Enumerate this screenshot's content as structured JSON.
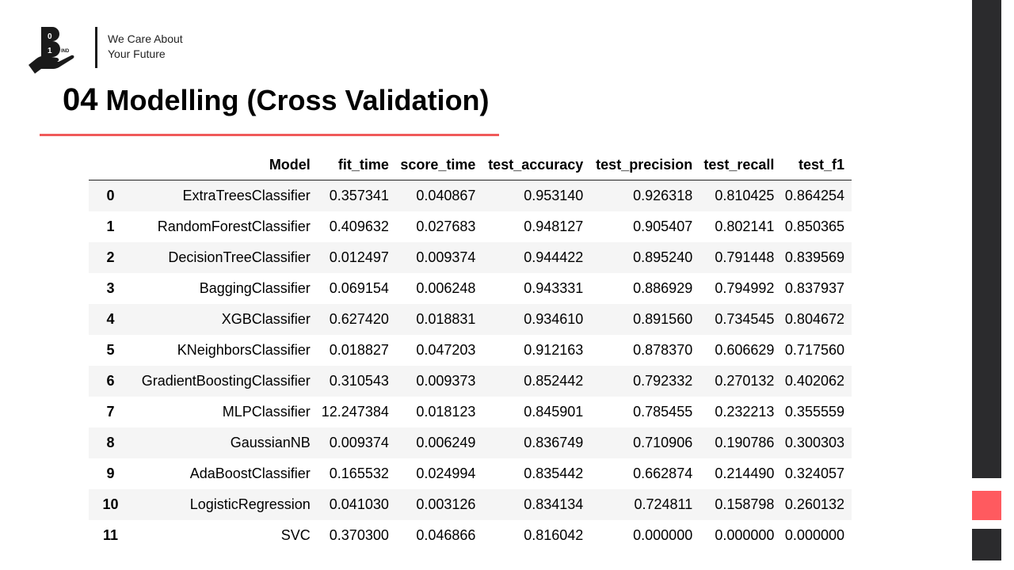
{
  "brand": {
    "tagline_line1": "We Care About",
    "tagline_line2": "Your Future",
    "logo_text_top": "0",
    "logo_text_mid": "1",
    "logo_text_small": "IND",
    "logo_letter": "B"
  },
  "slide": {
    "number": "04",
    "title": "Modelling (Cross Validation)"
  },
  "colors": {
    "accent": "#f05a5a",
    "sidebar_dark": "#2b2b2d",
    "sidebar_red": "#ff5a5f"
  },
  "table": {
    "headers": [
      "",
      "Model",
      "fit_time",
      "score_time",
      "test_accuracy",
      "test_precision",
      "test_recall",
      "test_f1"
    ],
    "rows": [
      [
        "0",
        "ExtraTreesClassifier",
        "0.357341",
        "0.040867",
        "0.953140",
        "0.926318",
        "0.810425",
        "0.864254"
      ],
      [
        "1",
        "RandomForestClassifier",
        "0.409632",
        "0.027683",
        "0.948127",
        "0.905407",
        "0.802141",
        "0.850365"
      ],
      [
        "2",
        "DecisionTreeClassifier",
        "0.012497",
        "0.009374",
        "0.944422",
        "0.895240",
        "0.791448",
        "0.839569"
      ],
      [
        "3",
        "BaggingClassifier",
        "0.069154",
        "0.006248",
        "0.943331",
        "0.886929",
        "0.794992",
        "0.837937"
      ],
      [
        "4",
        "XGBClassifier",
        "0.627420",
        "0.018831",
        "0.934610",
        "0.891560",
        "0.734545",
        "0.804672"
      ],
      [
        "5",
        "KNeighborsClassifier",
        "0.018827",
        "0.047203",
        "0.912163",
        "0.878370",
        "0.606629",
        "0.717560"
      ],
      [
        "6",
        "GradientBoostingClassifier",
        "0.310543",
        "0.009373",
        "0.852442",
        "0.792332",
        "0.270132",
        "0.402062"
      ],
      [
        "7",
        "MLPClassifier",
        "12.247384",
        "0.018123",
        "0.845901",
        "0.785455",
        "0.232213",
        "0.355559"
      ],
      [
        "8",
        "GaussianNB",
        "0.009374",
        "0.006249",
        "0.836749",
        "0.710906",
        "0.190786",
        "0.300303"
      ],
      [
        "9",
        "AdaBoostClassifier",
        "0.165532",
        "0.024994",
        "0.835442",
        "0.662874",
        "0.214490",
        "0.324057"
      ],
      [
        "10",
        "LogisticRegression",
        "0.041030",
        "0.003126",
        "0.834134",
        "0.724811",
        "0.158798",
        "0.260132"
      ],
      [
        "11",
        "SVC",
        "0.370300",
        "0.046866",
        "0.816042",
        "0.000000",
        "0.000000",
        "0.000000"
      ]
    ]
  }
}
